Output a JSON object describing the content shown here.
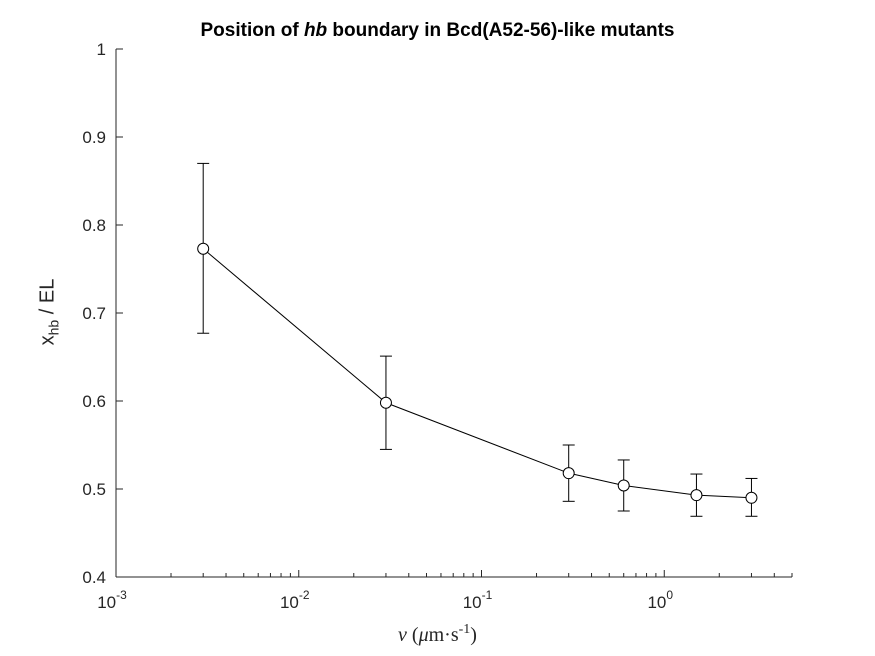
{
  "chart_data": {
    "type": "line",
    "title_pre": "Position of ",
    "title_italic": "hb",
    "title_post": " boundary in Bcd(A52-56)-like mutants",
    "xlabel": {
      "symbol": "ν",
      "open": " (",
      "mu": "μ",
      "unit": "m·s",
      "exp": "-1",
      "close": ")"
    },
    "ylabel": {
      "symbol": "x",
      "sub": "hb",
      "rest": " / EL"
    },
    "x_scale": "log",
    "xlim": [
      0.001,
      5
    ],
    "ylim": [
      0.4,
      1.0
    ],
    "x_ticks": [
      {
        "value": 0.001,
        "base": "10",
        "exp": "-3"
      },
      {
        "value": 0.01,
        "base": "10",
        "exp": "-2"
      },
      {
        "value": 0.1,
        "base": "10",
        "exp": "-1"
      },
      {
        "value": 1,
        "base": "10",
        "exp": "0"
      }
    ],
    "y_ticks": [
      "0.4",
      "0.5",
      "0.6",
      "0.7",
      "0.8",
      "0.9",
      "1"
    ],
    "grid": false,
    "series": [
      {
        "x": [
          0.003,
          0.03,
          0.3,
          0.6,
          1.5,
          3
        ],
        "y": [
          0.773,
          0.598,
          0.518,
          0.504,
          0.493,
          0.49
        ],
        "err_low": [
          0.677,
          0.545,
          0.486,
          0.475,
          0.469,
          0.469
        ],
        "err_high": [
          0.87,
          0.651,
          0.55,
          0.533,
          0.517,
          0.512
        ],
        "marker": "open-circle",
        "color": "#000000"
      }
    ]
  }
}
